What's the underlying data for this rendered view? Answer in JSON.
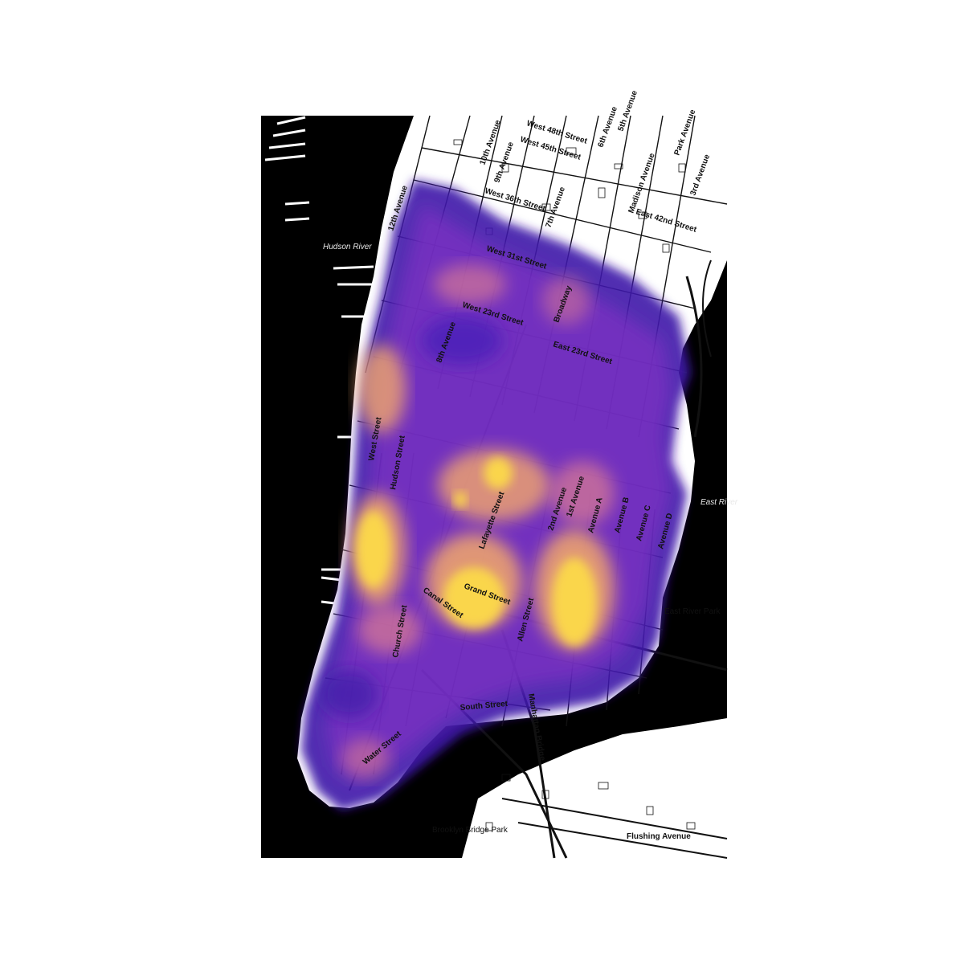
{
  "map": {
    "water_labels": [
      "Hudson River",
      "East River"
    ],
    "park_labels": [
      "East River Park",
      "Brooklyn Bridge Park"
    ],
    "street_labels": [
      "10th Avenue",
      "9th Avenue",
      "West 48th Street",
      "West 45th Street",
      "West 36th Street",
      "7th Avenue",
      "6th Avenue",
      "5th Avenue",
      "Madison Avenue",
      "Park Avenue",
      "3rd Avenue",
      "East 42nd Street",
      "West 31st Street",
      "West 23rd Street",
      "Broadway",
      "8th Avenue",
      "East 23rd Street",
      "West Street",
      "Hudson Street",
      "Lafayette Street",
      "2nd Avenue",
      "1st Avenue",
      "Avenue A",
      "Avenue B",
      "Avenue C",
      "Avenue D",
      "Grand Street",
      "Canal Street",
      "Allen Street",
      "Church Street",
      "South Street",
      "Water Street",
      "Manhattan Bridge",
      "Flushing Avenue",
      "12th Avenue"
    ],
    "colors": {
      "water": "#000000",
      "land": "#ffffff",
      "roads": "#111111",
      "heat_low": "#4a1fb8",
      "heat_mid": "#9b3ec0",
      "heat_high": "#f2a86a",
      "heat_peak": "#fcd94a"
    }
  }
}
